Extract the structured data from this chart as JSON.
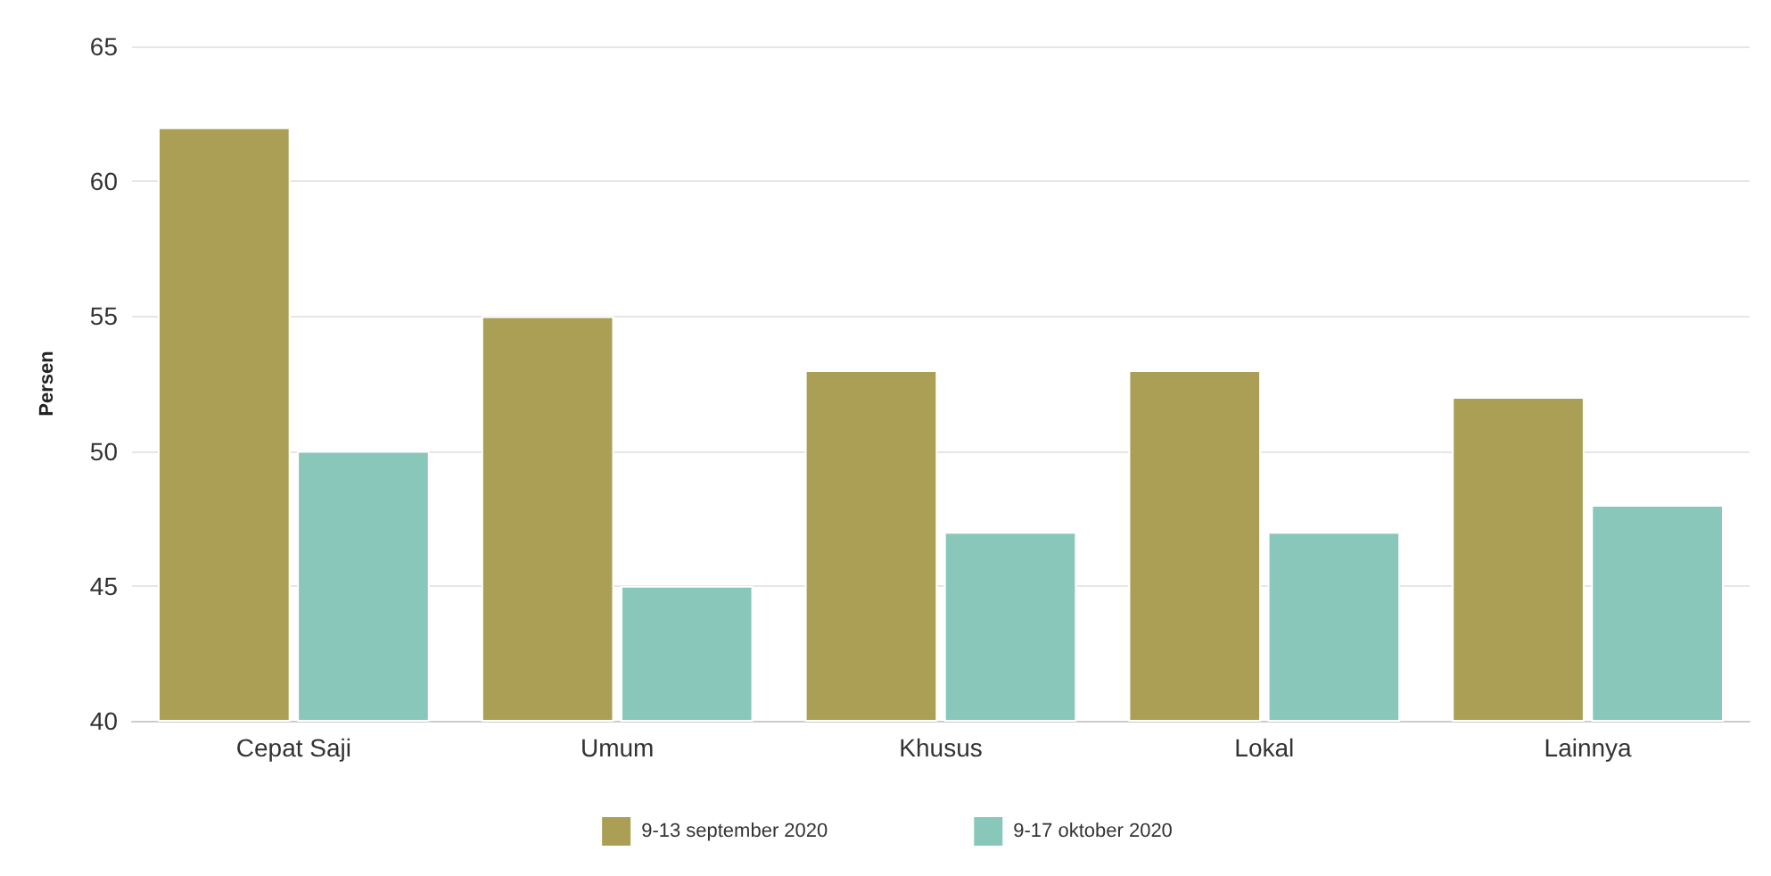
{
  "chart_data": {
    "type": "bar",
    "ylabel": "Persen",
    "categories": [
      "Cepat Saji",
      "Umum",
      "Khusus",
      "Lokal",
      "Lainnya"
    ],
    "series": [
      {
        "name": "9-13 september 2020",
        "color": "#ab9f55",
        "values": [
          62,
          55,
          53,
          53,
          52
        ]
      },
      {
        "name": "9-17 oktober 2020",
        "color": "#88c7ba",
        "values": [
          50,
          45,
          47,
          47,
          48
        ]
      }
    ],
    "ylim": [
      40,
      65
    ],
    "yticks": [
      40,
      45,
      50,
      55,
      60,
      65
    ],
    "grid": "y",
    "legend": "bottom"
  }
}
